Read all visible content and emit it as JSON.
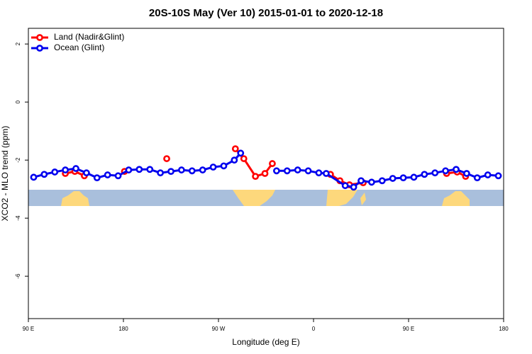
{
  "chart_data": {
    "type": "line",
    "title": "20S-10S May (Ver 10)   2015-01-01 to 2020-12-18",
    "x_label": "Longitude (deg E)",
    "y_label": "XCO2 - MLO trend (ppm)",
    "xlim": [
      90,
      540
    ],
    "ylim": [
      -7.46,
      2.54
    ],
    "xticks": [
      {
        "value": 90,
        "label": "90 E"
      },
      180,
      {
        "value": 270,
        "label": "90 W"
      },
      {
        "value": 360,
        "label": "0"
      },
      {
        "value": 450,
        "label": "90 E"
      },
      {
        "value": 540,
        "label": "180"
      }
    ],
    "yticks": [
      2,
      0,
      -2,
      -4,
      -6
    ],
    "legend": "top-left",
    "series": [
      {
        "name": "Land (Nadir&Glint)",
        "color": "#ff0000",
        "x": [
          125,
          134,
          143,
          null,
          181,
          null,
          221,
          null,
          286,
          294,
          305,
          314,
          321,
          null,
          376,
          385,
          394,
          407,
          null,
          486,
          496,
          504
        ],
        "values": [
          -2.46,
          -2.39,
          -2.54,
          null,
          -2.39,
          null,
          -1.95,
          null,
          -1.61,
          -1.95,
          -2.56,
          -2.46,
          -2.12,
          null,
          -2.49,
          -2.71,
          -2.85,
          -2.78,
          null,
          -2.46,
          -2.41,
          -2.56
        ]
      },
      {
        "name": "Ocean (Glint)",
        "color": "#0000ee",
        "x": [
          95,
          105,
          115,
          125,
          135,
          145,
          155,
          165,
          175,
          185,
          195,
          205,
          215,
          225,
          235,
          245,
          255,
          265,
          275,
          285,
          291,
          null,
          325,
          335,
          345,
          355,
          365,
          372,
          390,
          398,
          405,
          415,
          425,
          435,
          445,
          455,
          465,
          475,
          485,
          495,
          505,
          515,
          525,
          535
        ],
        "values": [
          -2.59,
          -2.49,
          -2.41,
          -2.34,
          -2.29,
          -2.44,
          -2.61,
          -2.51,
          -2.54,
          -2.34,
          -2.32,
          -2.32,
          -2.44,
          -2.39,
          -2.34,
          -2.37,
          -2.34,
          -2.24,
          -2.2,
          -2.0,
          -1.76,
          null,
          -2.37,
          -2.37,
          -2.34,
          -2.37,
          -2.44,
          -2.46,
          -2.88,
          -2.93,
          -2.71,
          -2.76,
          -2.71,
          -2.63,
          -2.61,
          -2.59,
          -2.49,
          -2.44,
          -2.37,
          -2.32,
          -2.46,
          -2.61,
          -2.51,
          -2.54
        ]
      }
    ]
  }
}
